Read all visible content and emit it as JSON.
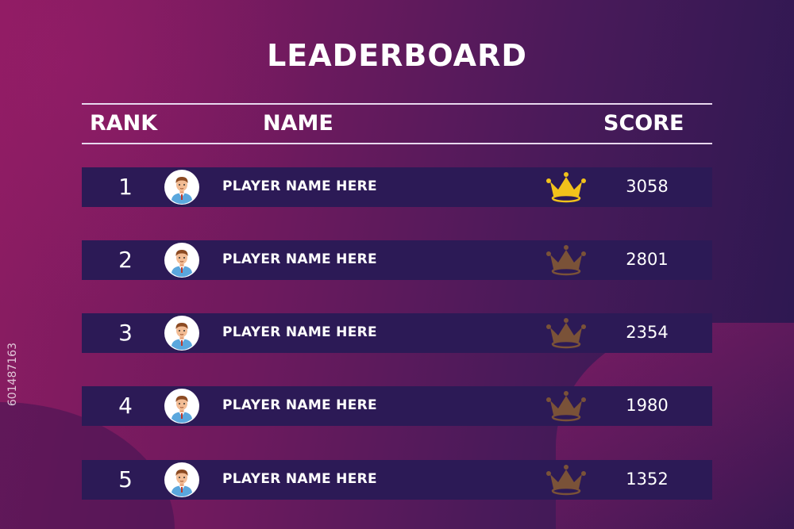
{
  "title": "LEADERBOARD",
  "headers": {
    "rank": "RANK",
    "name": "NAME",
    "score": "SCORE"
  },
  "colors": {
    "gold": "#f2c21b",
    "bronze": "#7a5238",
    "row": "#2c1a56"
  },
  "rows": [
    {
      "rank": "1",
      "name": "PLAYER NAME HERE",
      "score": "3058",
      "crown": "gold"
    },
    {
      "rank": "2",
      "name": "PLAYER NAME HERE",
      "score": "2801",
      "crown": "bronze"
    },
    {
      "rank": "3",
      "name": "PLAYER NAME HERE",
      "score": "2354",
      "crown": "bronze"
    },
    {
      "rank": "4",
      "name": "PLAYER NAME HERE",
      "score": "1980",
      "crown": "bronze"
    },
    {
      "rank": "5",
      "name": "PLAYER NAME HERE",
      "score": "1352",
      "crown": "bronze"
    }
  ],
  "watermark": "601487163"
}
